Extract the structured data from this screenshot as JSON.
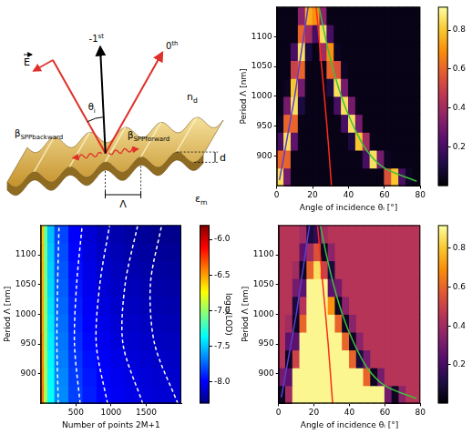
{
  "diagram": {
    "minus_first": {
      "main": "-1",
      "sup": "st"
    },
    "zeroth": {
      "main": "0",
      "sup": "th"
    },
    "field": "E",
    "angle": {
      "main": "θ",
      "sub": "i"
    },
    "dielectric": {
      "main": "n",
      "sub": "d"
    },
    "metal": {
      "main": "ε",
      "sub": "m"
    },
    "spp_backward": {
      "main": "β",
      "sub": "SPPbackward"
    },
    "spp_forward": {
      "main": "β",
      "sub": "SPPforward"
    },
    "period": "Λ",
    "depth": "d"
  },
  "chart_data": [
    {
      "type": "heatmap",
      "color": "inferno",
      "xlabel": "Angle of incidence θᵢ [°]",
      "ylabel": "Period Λ [nm]",
      "xlim": [
        0,
        80
      ],
      "xticks": [
        0,
        20,
        40,
        60,
        80
      ],
      "ylim": [
        850,
        1150
      ],
      "yticks": [
        900,
        950,
        1000,
        1050,
        1100
      ],
      "x_edges": [
        0,
        4,
        8,
        12,
        16,
        20,
        24,
        28,
        32,
        36,
        40,
        44,
        48,
        52,
        56,
        60,
        64,
        68,
        72,
        76,
        80
      ],
      "y_edges": [
        850,
        880,
        910,
        940,
        970,
        1000,
        1030,
        1060,
        1090,
        1120,
        1150
      ],
      "cells": [
        [
          0.85,
          0.3,
          0.03,
          0.03,
          0.03,
          0.03,
          0.03,
          0.03,
          0.03,
          0.03,
          0.03,
          0.03,
          0.03,
          0.03,
          0.03,
          0.55,
          0.8,
          0.2,
          0.05,
          0.03
        ],
        [
          0.6,
          0.6,
          0.03,
          0.03,
          0.03,
          0.03,
          0.03,
          0.03,
          0.03,
          0.03,
          0.03,
          0.03,
          0.2,
          0.85,
          0.3,
          0.05,
          0.03,
          0.03,
          0.03,
          0.03
        ],
        [
          0.2,
          0.85,
          0.25,
          0.03,
          0.03,
          0.03,
          0.03,
          0.03,
          0.03,
          0.03,
          0.1,
          0.8,
          0.4,
          0.03,
          0.03,
          0.03,
          0.03,
          0.03,
          0.03,
          0.03
        ],
        [
          0.05,
          0.6,
          0.6,
          0.03,
          0.03,
          0.03,
          0.03,
          0.03,
          0.03,
          0.2,
          0.85,
          0.3,
          0.03,
          0.03,
          0.03,
          0.03,
          0.03,
          0.03,
          0.03,
          0.03
        ],
        [
          0.03,
          0.3,
          0.85,
          0.1,
          0.03,
          0.03,
          0.03,
          0.03,
          0.2,
          0.85,
          0.3,
          0.03,
          0.03,
          0.03,
          0.03,
          0.03,
          0.03,
          0.03,
          0.03,
          0.03
        ],
        [
          0.03,
          0.05,
          0.8,
          0.3,
          0.03,
          0.03,
          0.03,
          0.1,
          0.85,
          0.3,
          0.03,
          0.03,
          0.03,
          0.03,
          0.03,
          0.03,
          0.03,
          0.03,
          0.03,
          0.03
        ],
        [
          0.03,
          0.03,
          0.5,
          0.6,
          0.03,
          0.03,
          0.03,
          0.6,
          0.55,
          0.05,
          0.03,
          0.03,
          0.03,
          0.03,
          0.03,
          0.03,
          0.03,
          0.03,
          0.03,
          0.03
        ],
        [
          0.03,
          0.03,
          0.2,
          0.85,
          0.1,
          0.03,
          0.4,
          0.7,
          0.05,
          0.03,
          0.03,
          0.03,
          0.03,
          0.03,
          0.03,
          0.03,
          0.03,
          0.03,
          0.03,
          0.03
        ],
        [
          0.03,
          0.03,
          0.03,
          0.6,
          0.4,
          0.2,
          0.85,
          0.2,
          0.03,
          0.03,
          0.03,
          0.03,
          0.03,
          0.03,
          0.03,
          0.03,
          0.03,
          0.03,
          0.03,
          0.03
        ],
        [
          0.03,
          0.03,
          0.03,
          0.35,
          0.75,
          0.7,
          0.35,
          0.03,
          0.03,
          0.03,
          0.03,
          0.03,
          0.03,
          0.03,
          0.03,
          0.03,
          0.03,
          0.03,
          0.03,
          0.03
        ]
      ],
      "color_range": [
        0,
        0.92
      ],
      "color_ticks": [
        0.2,
        0.4,
        0.6,
        0.8
      ],
      "series": [
        {
          "color": "#ff2a1a",
          "x": [
            30.5,
            28,
            25,
            22
          ],
          "values": [
            850,
            950,
            1050,
            1150
          ]
        },
        {
          "color": "#3fbf3f",
          "x": [
            78,
            60,
            50,
            42,
            36,
            31,
            27,
            23.5
          ],
          "values": [
            858,
            880,
            910,
            955,
            1000,
            1050,
            1100,
            1150
          ]
        },
        {
          "color": "#5a3fd0",
          "x": [
            1.5,
            4,
            7,
            10,
            12.5,
            15,
            17.5
          ],
          "values": [
            860,
            900,
            950,
            1000,
            1050,
            1100,
            1150
          ]
        }
      ]
    },
    {
      "type": "heatmap",
      "color": "jet",
      "xlabel": "Number of points 2M+1",
      "ylabel": "Period Λ [nm]",
      "xlim": [
        0,
        2000
      ],
      "xticks": [
        500,
        1000,
        1500
      ],
      "ylim": [
        850,
        1150
      ],
      "yticks": [
        900,
        950,
        1000,
        1050,
        1100
      ],
      "x_edges": [
        0,
        50,
        100,
        200,
        400,
        600,
        800,
        1000,
        1200,
        1400,
        1600,
        1800,
        2000
      ],
      "y_edges": [
        850,
        880,
        910,
        940,
        970,
        1000,
        1030,
        1060,
        1090,
        1120,
        1150
      ],
      "cells": [
        [
          -6.4,
          -6.95,
          -7.35,
          -7.65,
          -7.83,
          -7.92,
          -7.98,
          -8.02,
          -8.05,
          -8.07,
          -8.09,
          -8.1
        ],
        [
          -6.42,
          -6.96,
          -7.36,
          -7.66,
          -7.84,
          -7.93,
          -7.99,
          -8.03,
          -8.06,
          -8.08,
          -8.1,
          -8.11
        ],
        [
          -6.45,
          -6.98,
          -7.38,
          -7.68,
          -7.86,
          -7.95,
          -8.01,
          -8.05,
          -8.08,
          -8.1,
          -8.12,
          -8.13
        ],
        [
          -6.47,
          -7.0,
          -7.4,
          -7.7,
          -7.88,
          -7.97,
          -8.03,
          -8.07,
          -8.1,
          -8.12,
          -8.14,
          -8.15
        ],
        [
          -6.5,
          -7.02,
          -7.42,
          -7.72,
          -7.9,
          -7.99,
          -8.05,
          -8.09,
          -8.12,
          -8.14,
          -8.16,
          -8.17
        ],
        [
          -6.52,
          -7.04,
          -7.44,
          -7.74,
          -7.92,
          -8.01,
          -8.07,
          -8.11,
          -8.14,
          -8.16,
          -8.18,
          -8.19
        ],
        [
          -6.54,
          -7.06,
          -7.46,
          -7.76,
          -7.94,
          -8.03,
          -8.09,
          -8.13,
          -8.16,
          -8.18,
          -8.2,
          -8.21
        ],
        [
          -6.56,
          -7.08,
          -7.48,
          -7.78,
          -7.96,
          -8.05,
          -8.11,
          -8.15,
          -8.18,
          -8.2,
          -8.22,
          -8.23
        ],
        [
          -6.58,
          -7.1,
          -7.5,
          -7.8,
          -7.98,
          -8.07,
          -8.13,
          -8.17,
          -8.2,
          -8.22,
          -8.24,
          -8.25
        ],
        [
          -6.6,
          -7.12,
          -7.52,
          -7.82,
          -8.0,
          -8.09,
          -8.15,
          -8.19,
          -8.22,
          -8.24,
          -8.26,
          -8.27
        ]
      ],
      "color_range": [
        -8.3,
        -5.8
      ],
      "color_ticks": [
        {
          "value": -8,
          "label": "-8.0"
        },
        {
          "value": -7.5,
          "label": "-7.5"
        },
        {
          "value": -7,
          "label": "-7.0"
        },
        {
          "value": -6.5,
          "label": "-6.5"
        },
        {
          "value": -6,
          "label": "-6.0"
        }
      ],
      "colorbar_label": "log₁₀(LOD)",
      "series": [
        {
          "color": "#ffffff",
          "line_style": "dashed",
          "x": [
            250,
            230,
            240,
            260
          ],
          "values": [
            850,
            950,
            1050,
            1150
          ]
        },
        {
          "color": "#ffffff",
          "line_style": "dashed",
          "x": [
            560,
            480,
            510,
            590
          ],
          "values": [
            850,
            950,
            1050,
            1150
          ]
        },
        {
          "color": "#ffffff",
          "line_style": "dashed",
          "x": [
            950,
            790,
            840,
            980
          ],
          "values": [
            850,
            950,
            1050,
            1150
          ]
        },
        {
          "color": "#ffffff",
          "line_style": "dashed",
          "x": [
            1450,
            1170,
            1200,
            1380
          ],
          "values": [
            850,
            950,
            1050,
            1150
          ]
        },
        {
          "color": "#ffffff",
          "line_style": "dashed",
          "x": [
            1950,
            1620,
            1560,
            1720
          ],
          "values": [
            850,
            950,
            1050,
            1150
          ]
        }
      ]
    },
    {
      "type": "heatmap",
      "color": "inferno",
      "xlabel": "Angle of incidence θᵢ [°]",
      "ylabel": "Period Λ [nm]",
      "xlim": [
        0,
        80
      ],
      "xticks": [
        0,
        20,
        40,
        60,
        80
      ],
      "ylim": [
        850,
        1150
      ],
      "yticks": [
        900,
        950,
        1000,
        1050,
        1100
      ],
      "x_edges": [
        0,
        4,
        8,
        12,
        16,
        20,
        24,
        28,
        32,
        36,
        40,
        44,
        48,
        52,
        56,
        60,
        64,
        68,
        72,
        76,
        80
      ],
      "y_edges": [
        850,
        880,
        910,
        940,
        970,
        1000,
        1030,
        1060,
        1090,
        1120,
        1150
      ],
      "cells": [
        [
          0.05,
          0.4,
          0.9,
          0.9,
          0.9,
          0.9,
          0.9,
          0.9,
          0.9,
          0.9,
          0.9,
          0.9,
          0.9,
          0.9,
          0.9,
          0.3,
          0.05,
          0.35,
          0.45,
          0.45
        ],
        [
          0.3,
          0.25,
          0.9,
          0.9,
          0.9,
          0.9,
          0.9,
          0.9,
          0.9,
          0.9,
          0.9,
          0.9,
          0.6,
          0.05,
          0.3,
          0.45,
          0.45,
          0.45,
          0.45,
          0.45
        ],
        [
          0.45,
          0.05,
          0.5,
          0.9,
          0.9,
          0.9,
          0.9,
          0.9,
          0.9,
          0.9,
          0.6,
          0.1,
          0.3,
          0.45,
          0.45,
          0.45,
          0.45,
          0.45,
          0.45,
          0.45
        ],
        [
          0.45,
          0.25,
          0.25,
          0.9,
          0.9,
          0.9,
          0.9,
          0.9,
          0.9,
          0.6,
          0.05,
          0.35,
          0.45,
          0.45,
          0.45,
          0.45,
          0.45,
          0.45,
          0.45,
          0.45
        ],
        [
          0.45,
          0.4,
          0.05,
          0.6,
          0.9,
          0.9,
          0.9,
          0.9,
          0.6,
          0.05,
          0.35,
          0.45,
          0.45,
          0.45,
          0.45,
          0.45,
          0.45,
          0.45,
          0.45,
          0.45
        ],
        [
          0.45,
          0.45,
          0.1,
          0.45,
          0.9,
          0.9,
          0.9,
          0.7,
          0.05,
          0.35,
          0.45,
          0.45,
          0.45,
          0.45,
          0.45,
          0.45,
          0.45,
          0.45,
          0.45,
          0.45
        ],
        [
          0.45,
          0.45,
          0.3,
          0.25,
          0.9,
          0.9,
          0.9,
          0.25,
          0.3,
          0.45,
          0.45,
          0.45,
          0.45,
          0.45,
          0.45,
          0.45,
          0.45,
          0.45,
          0.45,
          0.45
        ],
        [
          0.45,
          0.45,
          0.4,
          0.05,
          0.6,
          0.85,
          0.5,
          0.1,
          0.45,
          0.45,
          0.45,
          0.45,
          0.45,
          0.45,
          0.45,
          0.45,
          0.45,
          0.45,
          0.45,
          0.45
        ],
        [
          0.45,
          0.45,
          0.45,
          0.25,
          0.4,
          0.55,
          0.05,
          0.35,
          0.45,
          0.45,
          0.45,
          0.45,
          0.45,
          0.45,
          0.45,
          0.45,
          0.45,
          0.45,
          0.45,
          0.45
        ],
        [
          0.45,
          0.45,
          0.45,
          0.4,
          0.1,
          0.15,
          0.4,
          0.45,
          0.45,
          0.45,
          0.45,
          0.45,
          0.45,
          0.45,
          0.45,
          0.45,
          0.45,
          0.45,
          0.45,
          0.45
        ]
      ],
      "color_range": [
        0,
        0.92
      ],
      "color_ticks": [
        0.2,
        0.4,
        0.6,
        0.8
      ],
      "series": [
        {
          "color": "#ff2a1a",
          "x": [
            30.5,
            28,
            25,
            22
          ],
          "values": [
            850,
            950,
            1050,
            1150
          ]
        },
        {
          "color": "#3fbf3f",
          "x": [
            78,
            60,
            50,
            42,
            36,
            31,
            27,
            23.5
          ],
          "values": [
            858,
            880,
            910,
            955,
            1000,
            1050,
            1100,
            1150
          ]
        },
        {
          "color": "#5a3fd0",
          "x": [
            1.5,
            4,
            7,
            10,
            12.5,
            15,
            17.5
          ],
          "values": [
            860,
            900,
            950,
            1000,
            1050,
            1100,
            1150
          ]
        }
      ]
    }
  ]
}
